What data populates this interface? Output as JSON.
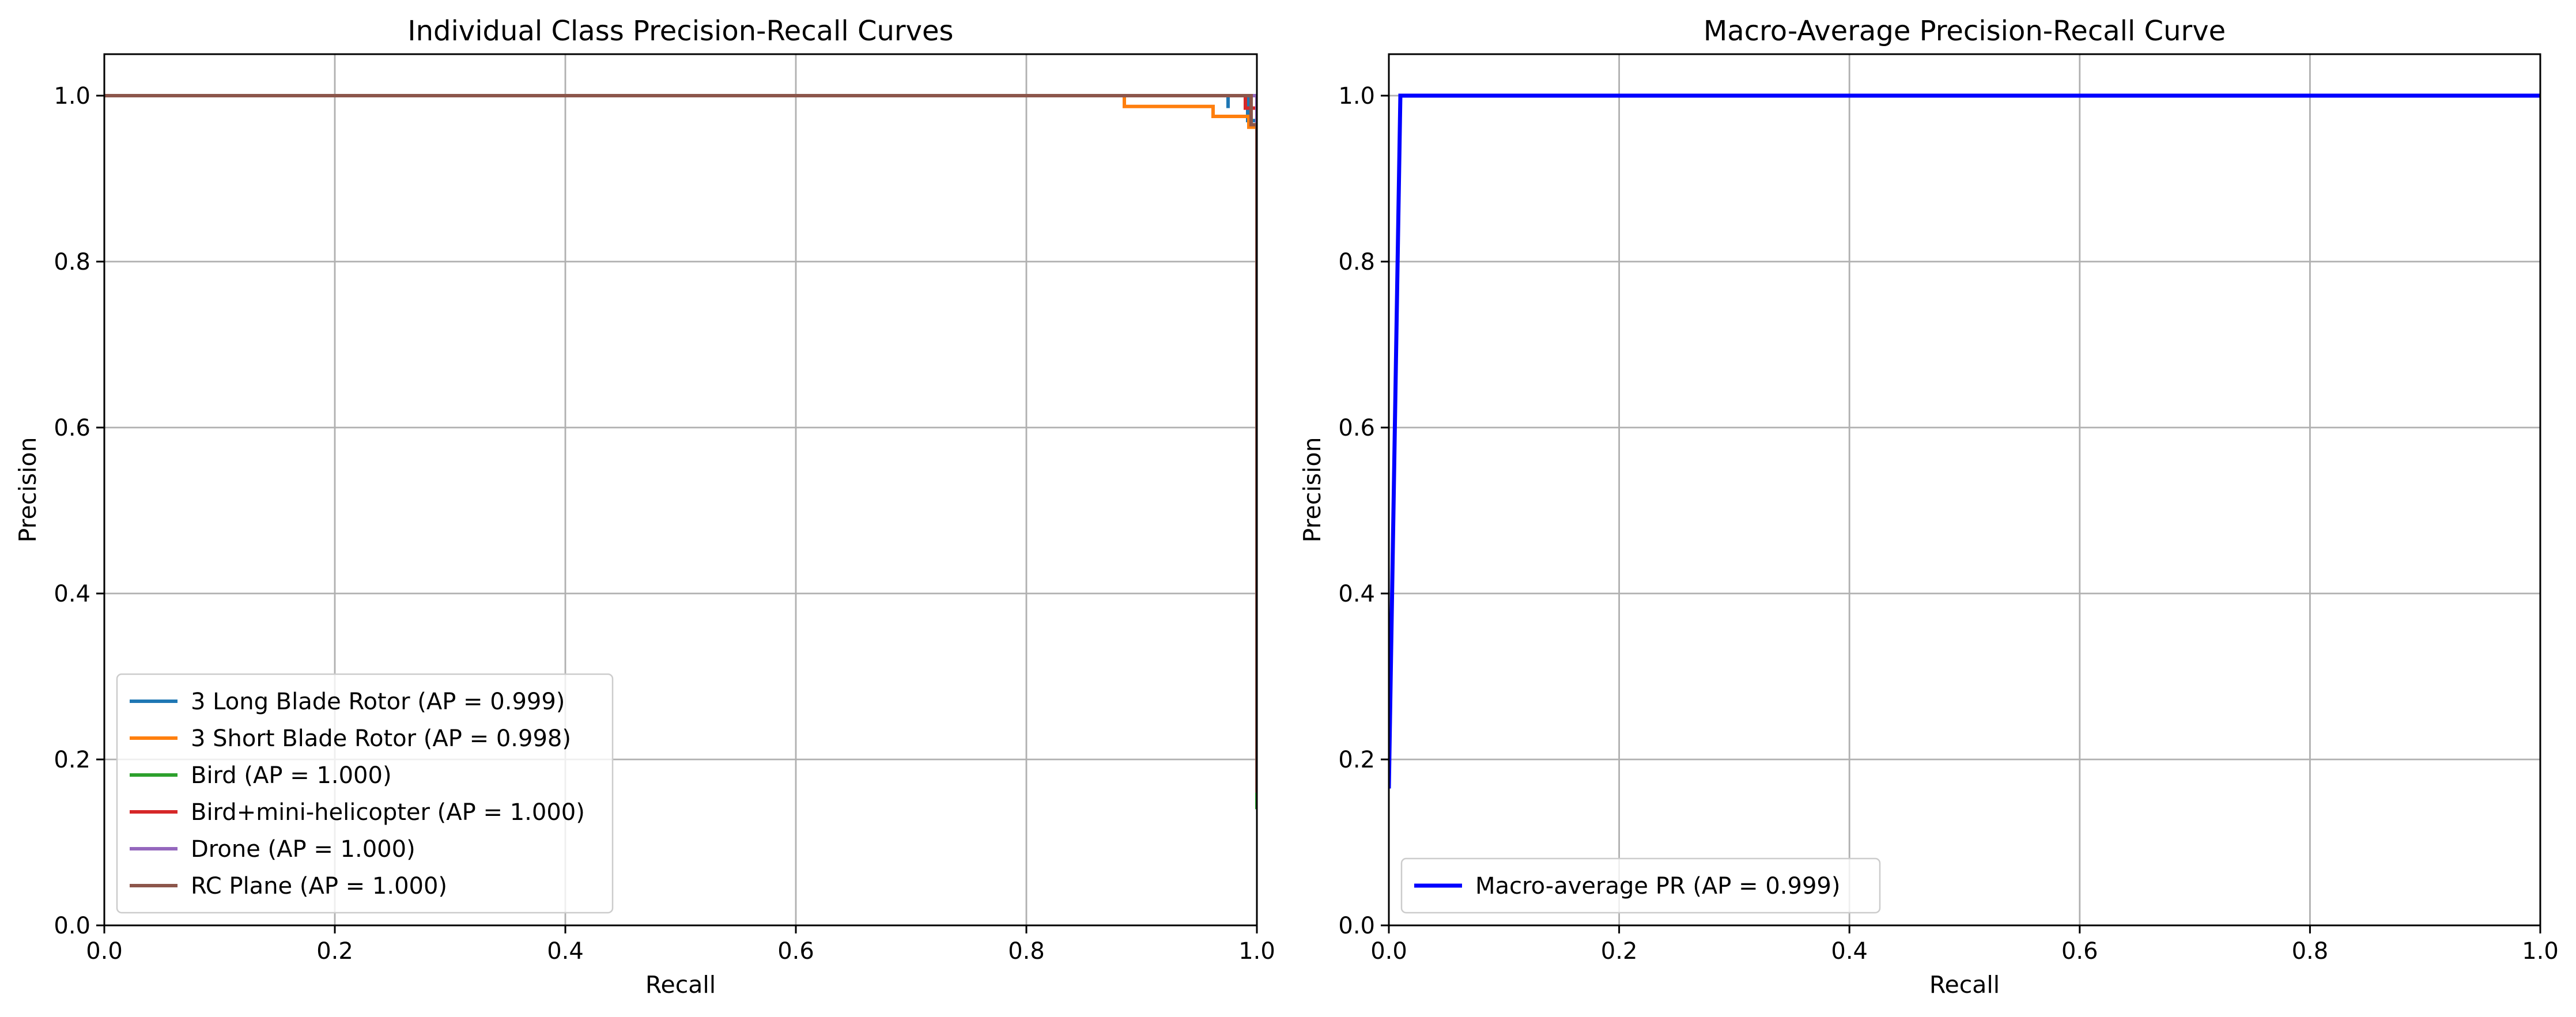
{
  "chart_data": [
    {
      "type": "line",
      "title": "Individual Class Precision-Recall Curves",
      "xlabel": "Recall",
      "ylabel": "Precision",
      "xlim": [
        0.0,
        1.0
      ],
      "ylim": [
        0.0,
        1.05
      ],
      "xticks": [
        "0.0",
        "0.2",
        "0.4",
        "0.6",
        "0.8",
        "1.0"
      ],
      "yticks": [
        "0.0",
        "0.2",
        "0.4",
        "0.6",
        "0.8",
        "1.0"
      ],
      "grid": true,
      "legend_position": "lower-left",
      "series": [
        {
          "name": "3 Long Blade Rotor (AP = 0.999)",
          "color": "#1f77b4",
          "points": [
            [
              0,
              1.0
            ],
            [
              0.975,
              1.0
            ],
            [
              0.975,
              0.985
            ],
            [
              0.975,
              1.0
            ],
            [
              0.992,
              1.0
            ],
            [
              0.992,
              0.97
            ],
            [
              1.0,
              0.97
            ],
            [
              1.0,
              0.16
            ]
          ]
        },
        {
          "name": "3 Short Blade Rotor (AP = 0.998)",
          "color": "#ff7f0e",
          "points": [
            [
              0,
              1.0
            ],
            [
              0.885,
              1.0
            ],
            [
              0.885,
              0.987
            ],
            [
              0.962,
              0.987
            ],
            [
              0.962,
              0.975
            ],
            [
              0.993,
              0.975
            ],
            [
              0.993,
              0.962
            ],
            [
              1.0,
              0.962
            ],
            [
              1.0,
              0.16
            ]
          ]
        },
        {
          "name": "Bird (AP = 1.000)",
          "color": "#2ca02c",
          "points": [
            [
              0,
              1.0
            ],
            [
              1.0,
              1.0
            ],
            [
              1.0,
              0.14
            ]
          ]
        },
        {
          "name": "Bird+mini-helicopter (AP = 1.000)",
          "color": "#d62728",
          "points": [
            [
              0,
              1.0
            ],
            [
              0.99,
              1.0
            ],
            [
              0.99,
              0.985
            ],
            [
              1.0,
              0.985
            ],
            [
              1.0,
              0.17
            ]
          ]
        },
        {
          "name": "Drone (AP = 1.000)",
          "color": "#9467bd",
          "points": [
            [
              0,
              1.0
            ],
            [
              1.0,
              1.0
            ],
            [
              1.0,
              0.16
            ]
          ]
        },
        {
          "name": "RC Plane (AP = 1.000)",
          "color": "#8c564b",
          "points": [
            [
              0,
              1.0
            ],
            [
              0.995,
              1.0
            ],
            [
              0.995,
              0.965
            ],
            [
              1.0,
              0.965
            ],
            [
              1.0,
              0.16
            ]
          ]
        }
      ]
    },
    {
      "type": "line",
      "title": "Macro-Average Precision-Recall Curve",
      "xlabel": "Recall",
      "ylabel": "Precision",
      "xlim": [
        0.0,
        1.0
      ],
      "ylim": [
        0.0,
        1.05
      ],
      "xticks": [
        "0.0",
        "0.2",
        "0.4",
        "0.6",
        "0.8",
        "1.0"
      ],
      "yticks": [
        "0.0",
        "0.2",
        "0.4",
        "0.6",
        "0.8",
        "1.0"
      ],
      "grid": true,
      "legend_position": "lower-left",
      "series": [
        {
          "name": "Macro-average PR (AP = 0.999)",
          "color": "#0000ff",
          "points": [
            [
              0,
              0.165
            ],
            [
              0.01,
              1.0
            ],
            [
              1.0,
              1.0
            ]
          ]
        }
      ]
    }
  ]
}
